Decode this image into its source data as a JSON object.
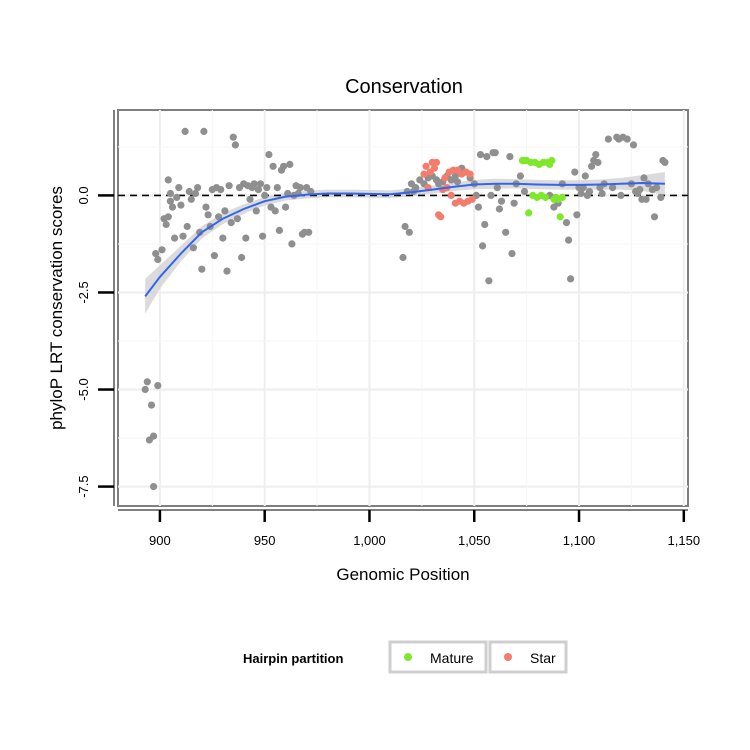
{
  "chart_data": {
    "type": "scatter",
    "title": "Conservation",
    "xlabel": "Genomic Position",
    "ylabel": "phyloP LRT conservation scores",
    "xlim": [
      880,
      1152
    ],
    "ylim": [
      -8.0,
      2.2
    ],
    "x_ticks": [
      900,
      950,
      1000,
      1050,
      1100,
      1150
    ],
    "x_tick_labels": [
      "900",
      "950",
      "1,000",
      "1,050",
      "1,100",
      "1,150"
    ],
    "y_ticks": [
      -7.5,
      -5.0,
      -2.5,
      0.0
    ],
    "y_tick_labels": [
      "-7.5",
      "-5.0",
      "-2.5",
      "0.0"
    ],
    "grid": true,
    "reference_line": {
      "y": 0,
      "style": "dashed"
    },
    "legend": {
      "title": "Hairpin partition",
      "position": "bottom",
      "entries": [
        {
          "name": "Mature",
          "color": "#7fe82a"
        },
        {
          "name": "Star",
          "color": "#f47c6c"
        }
      ]
    },
    "colors": {
      "other": "#8f8f8f",
      "smooth": "#3366ee",
      "band": "#cfcfcf"
    },
    "smooth": {
      "x": [
        893,
        900,
        910,
        920,
        930,
        940,
        950,
        960,
        970,
        980,
        990,
        1000,
        1010,
        1020,
        1030,
        1040,
        1050,
        1060,
        1070,
        1080,
        1090,
        1100,
        1110,
        1120,
        1130,
        1141
      ],
      "y": [
        -2.6,
        -2.1,
        -1.5,
        -0.95,
        -0.6,
        -0.35,
        -0.15,
        -0.03,
        0.02,
        0.05,
        0.05,
        0.04,
        0.03,
        0.08,
        0.15,
        0.22,
        0.28,
        0.3,
        0.3,
        0.28,
        0.27,
        0.27,
        0.28,
        0.3,
        0.32,
        0.3
      ],
      "band": [
        0.45,
        0.3,
        0.2,
        0.16,
        0.14,
        0.12,
        0.11,
        0.1,
        0.1,
        0.1,
        0.1,
        0.1,
        0.1,
        0.1,
        0.1,
        0.11,
        0.12,
        0.13,
        0.12,
        0.12,
        0.12,
        0.12,
        0.13,
        0.15,
        0.2,
        0.3
      ]
    },
    "series": [
      {
        "name": "",
        "group": "other",
        "points": [
          [
            893,
            -5.0
          ],
          [
            894,
            -4.8
          ],
          [
            895,
            -6.3
          ],
          [
            896,
            -5.4
          ],
          [
            897,
            -6.2
          ],
          [
            897,
            -7.5
          ],
          [
            899,
            -4.9
          ],
          [
            898,
            -1.5
          ],
          [
            899,
            -1.65
          ],
          [
            901,
            -1.4
          ],
          [
            903,
            -0.75
          ],
          [
            902,
            -0.6
          ],
          [
            904,
            0.4
          ],
          [
            904,
            -0.55
          ],
          [
            905,
            -0.15
          ],
          [
            905,
            0.05
          ],
          [
            906,
            -0.3
          ],
          [
            907,
            -1.1
          ],
          [
            908,
            -0.05
          ],
          [
            909,
            0.2
          ],
          [
            910,
            -0.25
          ],
          [
            911,
            -1.05
          ],
          [
            912,
            1.65
          ],
          [
            913,
            -0.8
          ],
          [
            914,
            0.1
          ],
          [
            915,
            -0.1
          ],
          [
            916,
            -1.35
          ],
          [
            917,
            0.05
          ],
          [
            918,
            0.2
          ],
          [
            919,
            -0.95
          ],
          [
            920,
            -1.9
          ],
          [
            921,
            1.65
          ],
          [
            922,
            -0.3
          ],
          [
            923,
            -0.5
          ],
          [
            924,
            -0.8
          ],
          [
            925,
            0.15
          ],
          [
            926,
            -1.55
          ],
          [
            927,
            0.2
          ],
          [
            928,
            -0.55
          ],
          [
            929,
            0.15
          ],
          [
            930,
            -1.1
          ],
          [
            931,
            -0.4
          ],
          [
            932,
            -1.95
          ],
          [
            933,
            0.25
          ],
          [
            934,
            -0.7
          ],
          [
            935,
            1.5
          ],
          [
            936,
            1.3
          ],
          [
            937,
            -0.6
          ],
          [
            938,
            0.2
          ],
          [
            939,
            -1.6
          ],
          [
            940,
            0.3
          ],
          [
            941,
            -1.1
          ],
          [
            942,
            0.25
          ],
          [
            943,
            -0.1
          ],
          [
            944,
            0.2
          ],
          [
            945,
            0.3
          ],
          [
            946,
            -0.4
          ],
          [
            947,
            0.15
          ],
          [
            948,
            0.3
          ],
          [
            949,
            -1.05
          ],
          [
            950,
            0.0
          ],
          [
            951,
            0.2
          ],
          [
            952,
            1.05
          ],
          [
            953,
            -0.3
          ],
          [
            954,
            0.75
          ],
          [
            955,
            -0.4
          ],
          [
            956,
            0.2
          ],
          [
            957,
            -0.9
          ],
          [
            958,
            0.65
          ],
          [
            959,
            0.75
          ],
          [
            960,
            -0.3
          ],
          [
            961,
            0.05
          ],
          [
            962,
            0.8
          ],
          [
            963,
            -1.25
          ],
          [
            964,
            0.0
          ],
          [
            965,
            0.25
          ],
          [
            966,
            0.05
          ],
          [
            967,
            0.2
          ],
          [
            968,
            -1.0
          ],
          [
            969,
            -0.95
          ],
          [
            970,
            0.2
          ],
          [
            971,
            -0.95
          ],
          [
            972,
            0.1
          ],
          [
            1016,
            -1.6
          ],
          [
            1017,
            -0.8
          ],
          [
            1018,
            0.1
          ],
          [
            1019,
            -0.95
          ],
          [
            1020,
            0.3
          ],
          [
            1021,
            0.1
          ],
          [
            1022,
            0.2
          ],
          [
            1024,
            0.4
          ],
          [
            1026,
            0.3
          ],
          [
            1028,
            0.45
          ],
          [
            1030,
            0.5
          ],
          [
            1032,
            0.4
          ],
          [
            1033,
            0.3
          ],
          [
            1035,
            0.35
          ],
          [
            1037,
            0.5
          ],
          [
            1039,
            0.4
          ],
          [
            1041,
            0.5
          ],
          [
            1042,
            0.35
          ],
          [
            1044,
            0.7
          ],
          [
            1046,
            0.6
          ],
          [
            1048,
            0.45
          ],
          [
            1050,
            0.3
          ],
          [
            1051,
            0.0
          ],
          [
            1052,
            -0.3
          ],
          [
            1053,
            1.05
          ],
          [
            1054,
            -1.3
          ],
          [
            1055,
            -0.75
          ],
          [
            1056,
            1.0
          ],
          [
            1057,
            -2.2
          ],
          [
            1058,
            0.0
          ],
          [
            1059,
            1.1
          ],
          [
            1060,
            1.1
          ],
          [
            1061,
            0.2
          ],
          [
            1062,
            -0.35
          ],
          [
            1063,
            -0.15
          ],
          [
            1065,
            -0.95
          ],
          [
            1067,
            1.0
          ],
          [
            1068,
            -1.5
          ],
          [
            1069,
            -0.2
          ],
          [
            1070,
            0.3
          ],
          [
            1072,
            0.5
          ],
          [
            1074,
            0.1
          ],
          [
            1086,
            0.0
          ],
          [
            1088,
            -0.3
          ],
          [
            1090,
            -0.2
          ],
          [
            1092,
            0.3
          ],
          [
            1094,
            -0.7
          ],
          [
            1096,
            -2.15
          ],
          [
            1095,
            -1.15
          ],
          [
            1098,
            0.6
          ],
          [
            1099,
            -0.5
          ],
          [
            1100,
            0.2
          ],
          [
            1101,
            0.05
          ],
          [
            1102,
            0.2
          ],
          [
            1103,
            0.5
          ],
          [
            1104,
            0.0
          ],
          [
            1105,
            0.1
          ],
          [
            1106,
            0.75
          ],
          [
            1107,
            0.9
          ],
          [
            1108,
            1.05
          ],
          [
            1109,
            0.85
          ],
          [
            1110,
            0.2
          ],
          [
            1111,
            0.05
          ],
          [
            1112,
            0.3
          ],
          [
            1114,
            1.45
          ],
          [
            1116,
            0.2
          ],
          [
            1118,
            1.5
          ],
          [
            1119,
            1.45
          ],
          [
            1120,
            0.0
          ],
          [
            1121,
            1.5
          ],
          [
            1123,
            1.45
          ],
          [
            1125,
            0.3
          ],
          [
            1126,
            1.3
          ],
          [
            1127,
            0.1
          ],
          [
            1128,
            0.05
          ],
          [
            1129,
            0.15
          ],
          [
            1130,
            -0.1
          ],
          [
            1131,
            0.45
          ],
          [
            1132,
            -0.1
          ],
          [
            1133,
            0.3
          ],
          [
            1135,
            0.15
          ],
          [
            1136,
            -0.55
          ],
          [
            1137,
            0.2
          ],
          [
            1139,
            -0.05
          ],
          [
            1140,
            0.9
          ],
          [
            1141,
            0.85
          ]
        ]
      },
      {
        "name": "Mature",
        "group": "mature",
        "points": [
          [
            1073,
            0.9
          ],
          [
            1074,
            0.9
          ],
          [
            1075,
            0.9
          ],
          [
            1076,
            -0.45
          ],
          [
            1077,
            0.85
          ],
          [
            1078,
            0.0
          ],
          [
            1079,
            0.85
          ],
          [
            1080,
            -0.05
          ],
          [
            1081,
            0.8
          ],
          [
            1082,
            0.0
          ],
          [
            1083,
            0.85
          ],
          [
            1084,
            -0.05
          ],
          [
            1085,
            0.85
          ],
          [
            1086,
            0.8
          ],
          [
            1087,
            0.9
          ],
          [
            1088,
            -0.1
          ],
          [
            1089,
            -0.05
          ],
          [
            1090,
            -0.1
          ],
          [
            1091,
            -0.55
          ],
          [
            1092,
            -0.05
          ]
        ]
      },
      {
        "name": "Star",
        "group": "star",
        "points": [
          [
            1026,
            0.55
          ],
          [
            1027,
            0.75
          ],
          [
            1028,
            0.2
          ],
          [
            1029,
            0.6
          ],
          [
            1030,
            0.85
          ],
          [
            1031,
            0.7
          ],
          [
            1032,
            0.85
          ],
          [
            1033,
            -0.5
          ],
          [
            1034,
            -0.55
          ],
          [
            1035,
            0.15
          ],
          [
            1036,
            0.45
          ],
          [
            1037,
            0.2
          ],
          [
            1038,
            0.6
          ],
          [
            1039,
            0.0
          ],
          [
            1040,
            0.65
          ],
          [
            1041,
            -0.2
          ],
          [
            1042,
            0.65
          ],
          [
            1043,
            -0.15
          ],
          [
            1044,
            0.55
          ],
          [
            1045,
            -0.2
          ],
          [
            1046,
            0.6
          ],
          [
            1047,
            -0.15
          ],
          [
            1048,
            0.55
          ],
          [
            1049,
            -0.1
          ]
        ]
      }
    ]
  }
}
